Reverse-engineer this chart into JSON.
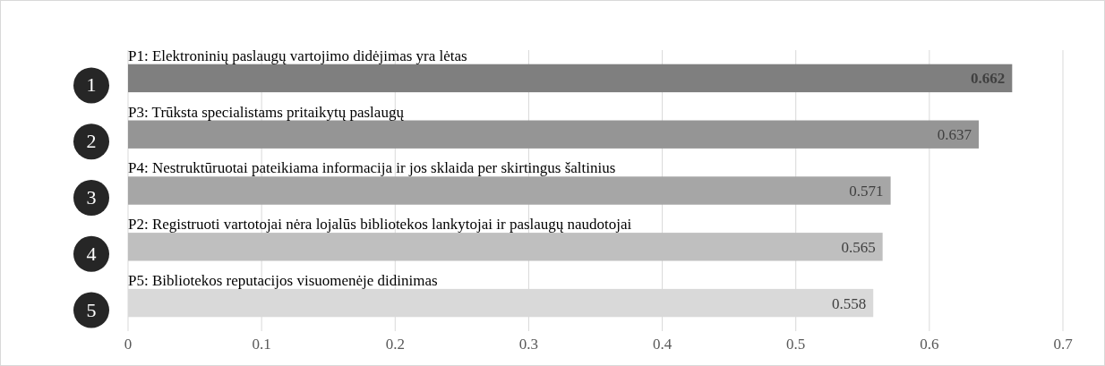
{
  "chart_data": {
    "type": "bar",
    "orientation": "horizontal",
    "categories": [
      "P1: Elektroninių paslaugų vartojimo didėjimas yra lėtas",
      "P3: Trūksta specialistams pritaikytų paslaugų",
      "P4: Nestruktūruotai pateikiama informacija ir jos sklaida per skirtingus šaltinius",
      "P2: Registruoti vartotojai nėra lojalūs bibliotekos lankytojai ir paslaugų naudotojai",
      "P5: Bibliotekos reputacijos visuomenėje didinimas"
    ],
    "values": [
      0.662,
      0.637,
      0.571,
      0.565,
      0.558
    ],
    "colors": [
      "#7f7f7f",
      "#959595",
      "#a6a6a6",
      "#bfbfbf",
      "#d9d9d9"
    ],
    "data_labels": true,
    "xlim": [
      0,
      0.7
    ],
    "xticks": [
      0,
      0.1,
      0.2,
      0.3,
      0.4,
      0.5,
      0.6,
      0.7
    ],
    "grid": "x",
    "annotations": [
      "1",
      "2",
      "3",
      "4",
      "5"
    ]
  }
}
